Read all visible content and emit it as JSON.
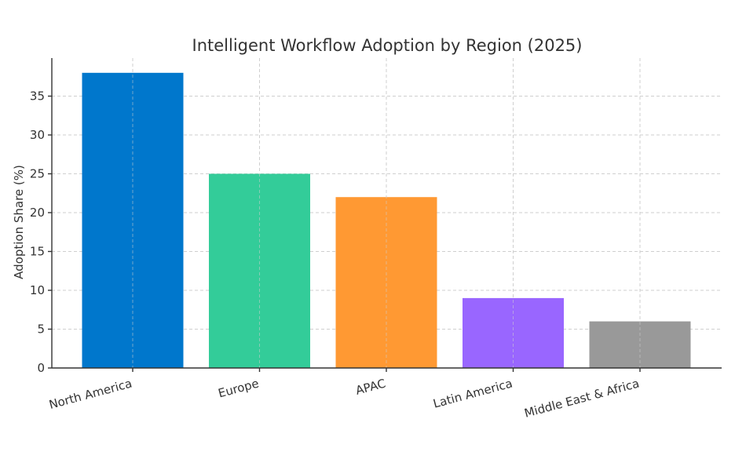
{
  "chart_data": {
    "type": "bar",
    "title": "Intelligent Workflow Adoption by Region (2025)",
    "xlabel": "",
    "ylabel": "Adoption Share (%)",
    "categories": [
      "North America",
      "Europe",
      "APAC",
      "Latin America",
      "Middle East & Africa"
    ],
    "values": [
      38,
      25,
      22,
      9,
      6
    ],
    "colors": [
      "#0077cc",
      "#33cc99",
      "#ff9933",
      "#9966ff",
      "#999999"
    ],
    "ylim": [
      0,
      39.9
    ],
    "yticks": [
      0,
      5,
      10,
      15,
      20,
      25,
      30,
      35
    ],
    "grid": true,
    "legend": "none"
  }
}
